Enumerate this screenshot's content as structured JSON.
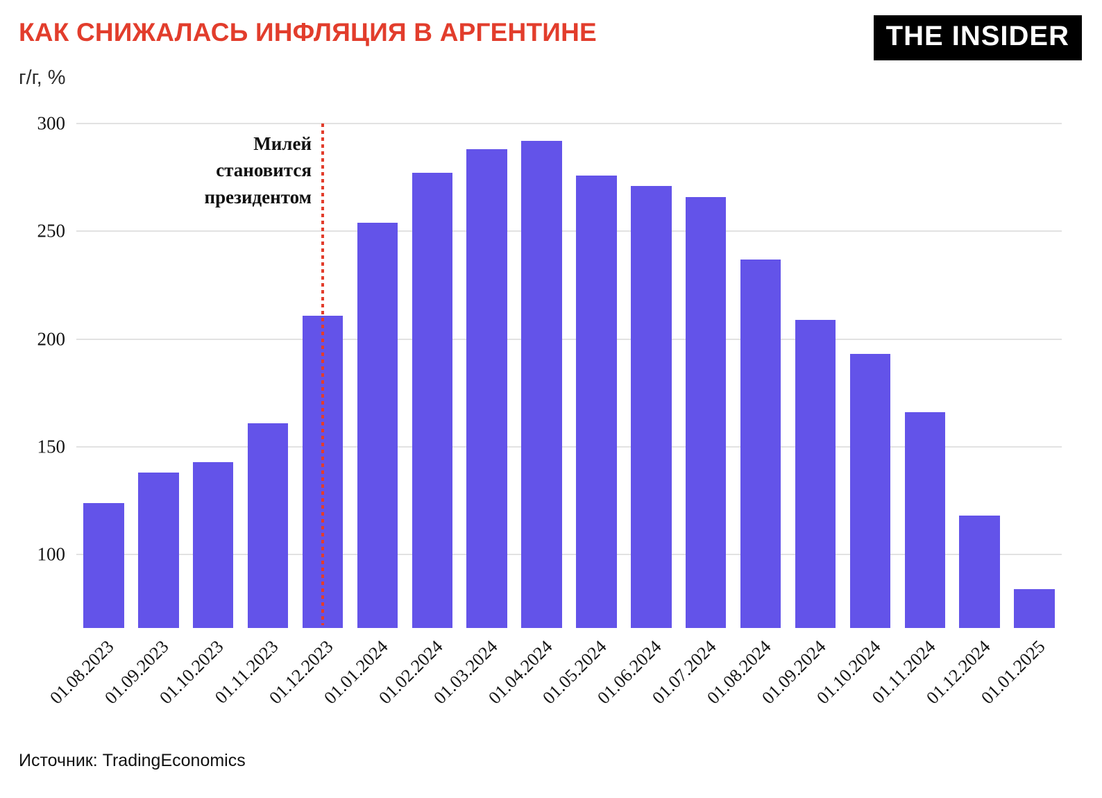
{
  "header": {
    "title": "КАК СНИЖАЛАСЬ ИНФЛЯЦИЯ В АРГЕНТИНЕ",
    "logo_text": "THE INSIDER",
    "units_label": "г/г, %"
  },
  "annotation": {
    "line1": "Милей",
    "line2": "становится",
    "line3": "президентом"
  },
  "source_label": "Источник: TradingEconomics",
  "colors": {
    "title_red": "#e23d2c",
    "bar_purple": "#6353e9",
    "marker_line_red": "#e23d2c",
    "gridline_gray": "#e2e2e2"
  },
  "chart_data": {
    "type": "bar",
    "title": "КАК СНИЖАЛАСЬ ИНФЛЯЦИЯ В АРГЕНТИНЕ",
    "xlabel": "",
    "ylabel": "г/г, %",
    "categories": [
      "01.08.2023",
      "01.09.2023",
      "01.10.2023",
      "01.11.2023",
      "01.12.2023",
      "01.01.2024",
      "01.02.2024",
      "01.03.2024",
      "01.04.2024",
      "01.05.2024",
      "01.06.2024",
      "01.07.2024",
      "01.08.2024",
      "01.09.2024",
      "01.10.2024",
      "01.11.2024",
      "01.12.2024",
      "01.01.2025"
    ],
    "values": [
      124,
      138,
      143,
      161,
      211,
      254,
      277,
      288,
      292,
      276,
      271,
      266,
      237,
      209,
      193,
      166,
      118,
      84
    ],
    "yticks": [
      100,
      150,
      200,
      250,
      300
    ],
    "ylim": [
      66,
      300
    ],
    "grid": true,
    "legend": false,
    "annotation": {
      "text": "Милей становится президентом",
      "x_category": "01.12.2023",
      "line_style": "dotted-vertical"
    }
  }
}
